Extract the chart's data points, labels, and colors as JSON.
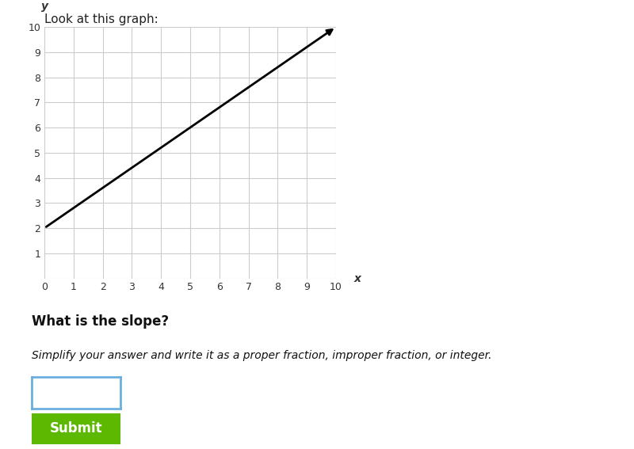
{
  "title_text": "Look at this graph:",
  "graph_xlim": [
    0,
    10
  ],
  "graph_ylim": [
    0,
    10
  ],
  "xticks": [
    0,
    1,
    2,
    3,
    4,
    5,
    6,
    7,
    8,
    9,
    10
  ],
  "yticks": [
    0,
    1,
    2,
    3,
    4,
    5,
    6,
    7,
    8,
    9,
    10
  ],
  "line_x": [
    0,
    10
  ],
  "line_y": [
    2,
    10
  ],
  "line_color": "#000000",
  "grid_color": "#cccccc",
  "bg_color": "#ffffff",
  "xlabel": "x",
  "ylabel": "y",
  "question_text": "What is the slope?",
  "instruction_text": "Simplify your answer and write it as a proper fraction, improper fraction, or integer.",
  "input_box_color": "#6ab0de",
  "submit_bg": "#5cb800",
  "submit_text": "Submit",
  "submit_text_color": "#ffffff",
  "axis_label_color": "#555555"
}
